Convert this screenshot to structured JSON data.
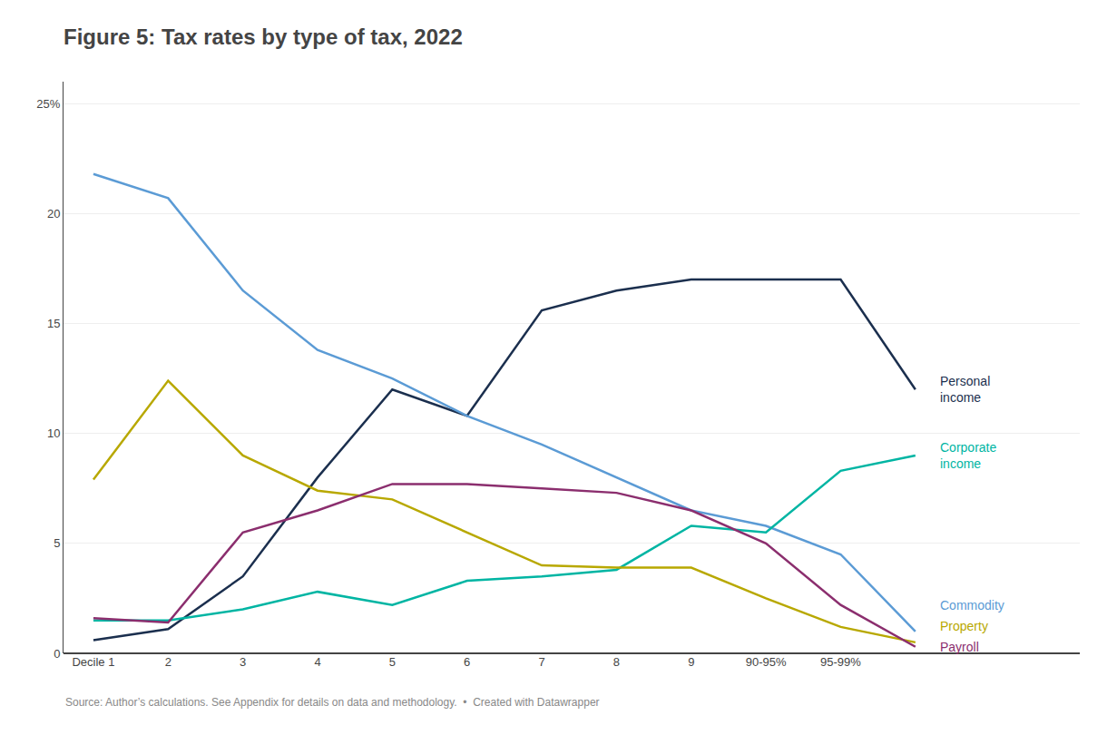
{
  "chart_data": {
    "type": "line",
    "title": "Figure 5: Tax rates by type of tax, 2022",
    "categories": [
      "Decile 1",
      "2",
      "3",
      "4",
      "5",
      "6",
      "7",
      "8",
      "9",
      "90-95%",
      "95-99%",
      null
    ],
    "series": [
      {
        "name": "Personal\nincome",
        "color": "#1b2f4e",
        "values": [
          0.6,
          1.1,
          3.5,
          8.0,
          12.0,
          10.8,
          15.6,
          16.5,
          17.0,
          17.0,
          17.0,
          12.0
        ]
      },
      {
        "name": "Commodity",
        "color": "#5b9bd5",
        "values": [
          21.8,
          20.7,
          16.5,
          13.8,
          12.5,
          10.8,
          9.5,
          8.0,
          6.5,
          5.8,
          4.5,
          1.0
        ]
      },
      {
        "name": "Corporate\nincome",
        "color": "#00b5a3",
        "values": [
          1.5,
          1.5,
          2.0,
          2.8,
          2.2,
          3.3,
          3.5,
          3.8,
          5.8,
          5.5,
          8.3,
          9.0
        ]
      },
      {
        "name": "Property",
        "color": "#b8a800",
        "values": [
          7.9,
          12.4,
          9.0,
          7.4,
          7.0,
          5.5,
          4.0,
          3.9,
          3.9,
          2.5,
          1.2,
          0.5
        ]
      },
      {
        "name": "Payroll",
        "color": "#8b2e6e",
        "values": [
          1.6,
          1.4,
          5.5,
          6.5,
          7.7,
          7.7,
          7.5,
          7.3,
          6.5,
          5.0,
          2.2,
          0.3
        ]
      }
    ],
    "ylim": [
      0,
      26
    ],
    "yticks": [
      0,
      5,
      10,
      15,
      20,
      {
        "value": 25,
        "label": "25%"
      }
    ],
    "grid": true,
    "annotations": [
      "Source: Author’s calculations. See Appendix for details on data and methodology.  •  Created with Datawrapper"
    ]
  }
}
